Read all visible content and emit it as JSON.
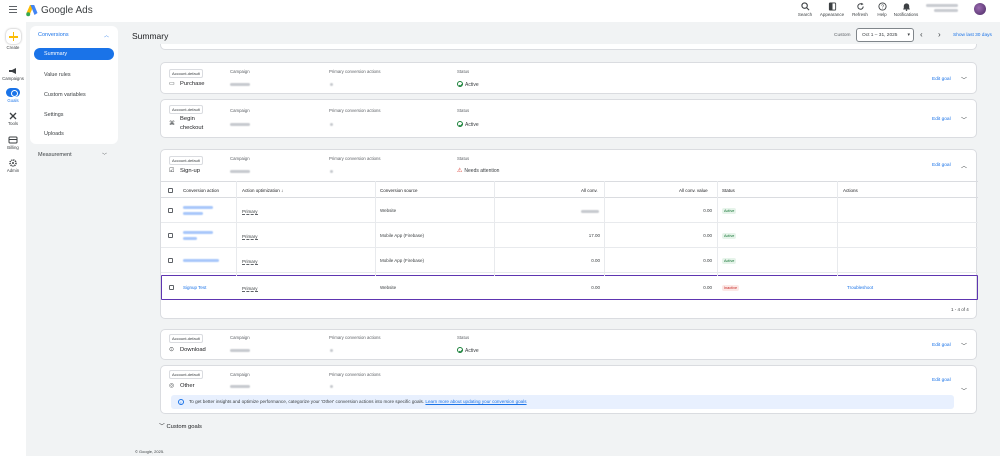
{
  "app": {
    "brand": "Google Ads"
  },
  "topbar": {
    "search": "Search",
    "appearance": "Appearance",
    "refresh": "Refresh",
    "help": "Help",
    "notifications": "Notifications"
  },
  "rail": {
    "create": "Create",
    "campaigns": "Campaigns",
    "goals": "Goals",
    "tools": "Tools",
    "billing": "Billing",
    "admin": "Admin"
  },
  "subnav": {
    "group": "Conversions",
    "items": [
      "Summary",
      "Value rules",
      "Custom variables",
      "Settings",
      "Uploads"
    ],
    "measurement": "Measurement"
  },
  "header": {
    "title": "Summary",
    "custom_label": "Custom",
    "date_range": "Oct 1 – 31, 2025",
    "show_last": "Show last 30 days"
  },
  "labels": {
    "account_default": "Account-default",
    "campaign": "Campaign",
    "primary_actions": "Primary conversion actions",
    "status": "Status",
    "edit_goal": "Edit goal"
  },
  "goals": [
    {
      "name": "Purchase",
      "status": "Active"
    },
    {
      "name": "Begin checkout",
      "name_line1": "Begin",
      "name_line2": "checkout",
      "status": "Active"
    },
    {
      "name": "Sign-up",
      "status": "Needs attention"
    },
    {
      "name": "Download",
      "status": "Active"
    },
    {
      "name": "Other"
    }
  ],
  "table": {
    "columns": [
      "Conversion action",
      "Action optimization",
      "Conversion source",
      "All conv.",
      "All conv. value",
      "Status",
      "Actions"
    ],
    "rows": [
      {
        "optimization": "Primary",
        "source": "Website",
        "all_conv_value": "0.00",
        "status": "Active"
      },
      {
        "optimization": "Primary",
        "source": "Mobile App (Firebase)",
        "all_conv": "17.00",
        "all_conv_value": "0.00",
        "status": "Active"
      },
      {
        "optimization": "Primary",
        "source": "Mobile App (Firebase)",
        "all_conv": "0.00",
        "all_conv_value": "0.00",
        "status": "Active"
      },
      {
        "name": "Signup Test",
        "optimization": "Primary",
        "source": "Website",
        "all_conv": "0.00",
        "all_conv_value": "0.00",
        "status": "Inactive",
        "action": "Troubleshoot"
      }
    ],
    "pager": "1 - 4 of 4"
  },
  "info": {
    "text": "To get better insights and optimize performance, categorize your 'Other' conversion actions into more specific goals.",
    "link": "Learn more about updating your conversion goals"
  },
  "custom_goals": "Custom goals",
  "footer": "© Google, 2025.",
  "colors": {
    "accent": "#1a73e8",
    "selected_row_border": "#5e35b1",
    "active": "#137333",
    "inactive": "#c5221f"
  }
}
